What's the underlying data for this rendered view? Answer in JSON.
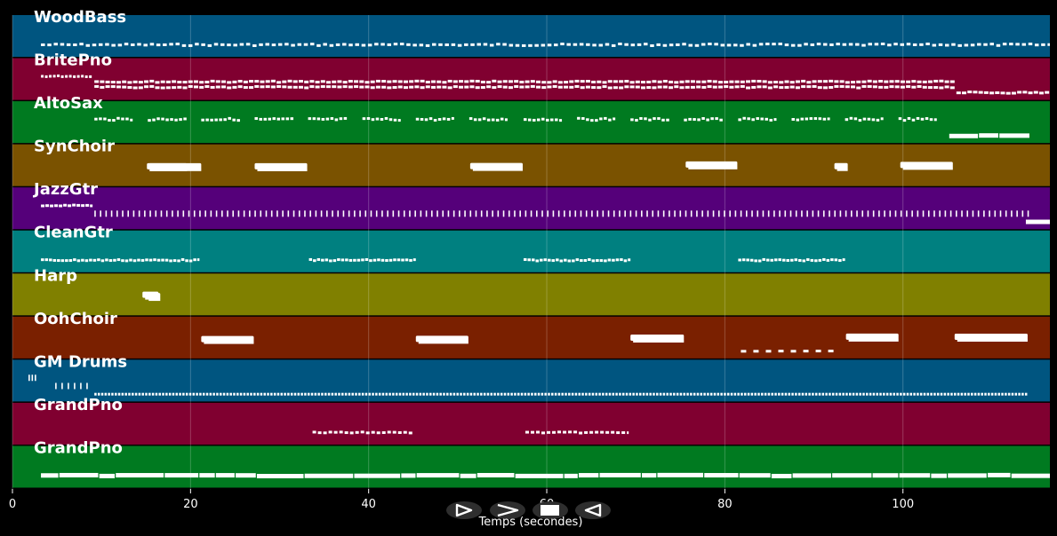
{
  "chart_data": {
    "type": "piano-roll",
    "xlabel": "Temps (secondes)",
    "xlim": [
      0,
      116.5
    ],
    "xticks": [
      0,
      20,
      40,
      60,
      80,
      100
    ],
    "grid": true,
    "tracks": [
      {
        "name": "WoodBass",
        "color": "#005580",
        "rows": [
          {
            "type": "dashes",
            "start": 3.2,
            "end": 116.5,
            "dur": 0.45,
            "gap": 0.72,
            "jitter": 1.0
          }
        ]
      },
      {
        "name": "BritePno",
        "color": "#800030",
        "rows": [
          {
            "type": "dashes",
            "start": 3.2,
            "end": 9.0,
            "dur": 0.3,
            "gap": 0.45,
            "jitter": 0.6
          },
          {
            "type": "dashes",
            "start": 9.2,
            "end": 105.8,
            "dur": 0.5,
            "gap": 0.62,
            "jitter": 0.8
          },
          {
            "type": "dashes",
            "start": 9.2,
            "end": 105.8,
            "dur": 0.5,
            "gap": 0.62,
            "jitter": 0.8
          },
          {
            "type": "dashes",
            "start": 106.0,
            "end": 116.5,
            "dur": 0.5,
            "gap": 0.62,
            "jitter": 0.8
          }
        ]
      },
      {
        "name": "AltoSax",
        "color": "#007a20",
        "rows": [
          {
            "type": "phrases",
            "phrases": [
              [
                9.2,
                13.5
              ],
              [
                15.2,
                19.6
              ],
              [
                21.2,
                25.6
              ],
              [
                27.2,
                31.6
              ],
              [
                33.2,
                37.6
              ],
              [
                39.3,
                43.6
              ],
              [
                45.3,
                49.6
              ],
              [
                51.3,
                55.6
              ],
              [
                57.4,
                61.7
              ],
              [
                63.4,
                67.7
              ],
              [
                69.4,
                73.8
              ],
              [
                75.4,
                79.8
              ],
              [
                81.5,
                85.8
              ],
              [
                87.5,
                91.8
              ],
              [
                93.5,
                97.8
              ],
              [
                99.5,
                103.8
              ]
            ],
            "dur": 0.35,
            "gap": 0.5,
            "jitter": 1.2
          },
          {
            "type": "solid",
            "start": 105.2,
            "end": 114.2,
            "jitter": 0.4
          }
        ]
      },
      {
        "name": "SynChoir",
        "color": "#7a5200",
        "rows": [
          {
            "type": "blocks",
            "blocks": [
              [
                15.1,
                19.6
              ],
              [
                15.3,
                21.2
              ],
              [
                27.2,
                33.1
              ],
              [
                51.4,
                57.3
              ],
              [
                75.6,
                81.4
              ],
              [
                92.3,
                93.8
              ],
              [
                99.7,
                105.6
              ]
            ],
            "jitter": 1.5
          }
        ]
      },
      {
        "name": "JazzGtr",
        "color": "#55007a",
        "rows": [
          {
            "type": "dashes",
            "start": 3.2,
            "end": 9.0,
            "dur": 0.4,
            "gap": 0.5,
            "jitter": 0.5
          },
          {
            "type": "bars",
            "start": 9.2,
            "end": 114.0,
            "gap": 0.62
          },
          {
            "type": "solid",
            "start": 113.8,
            "end": 116.5,
            "jitter": 0.0
          }
        ]
      },
      {
        "name": "CleanGtr",
        "color": "#008080",
        "rows": [
          {
            "type": "phrases",
            "phrases": [
              [
                3.2,
                21.0
              ],
              [
                33.3,
                45.3
              ],
              [
                57.4,
                69.4
              ],
              [
                81.5,
                93.5
              ]
            ],
            "dur": 0.35,
            "gap": 0.45,
            "jitter": 0.8
          }
        ]
      },
      {
        "name": "Harp",
        "color": "#808000",
        "rows": [
          {
            "type": "blocks",
            "blocks": [
              [
                15.0,
                16.6
              ],
              [
                14.6,
                16.4
              ]
            ],
            "jitter": 3.0
          }
        ]
      },
      {
        "name": "OohChoir",
        "color": "#7a2000",
        "rows": [
          {
            "type": "blocks",
            "blocks": [
              [
                21.2,
                27.1
              ],
              [
                45.3,
                51.2
              ],
              [
                69.4,
                75.4
              ],
              [
                93.6,
                99.5
              ],
              [
                105.8,
                114.0
              ]
            ],
            "jitter": 1.5
          },
          {
            "type": "phrases",
            "phrases": [
              [
                81.8,
                92.8
              ]
            ],
            "dur": 0.6,
            "gap": 1.4,
            "jitter": 0.2
          }
        ]
      },
      {
        "name": "GM Drums",
        "color": "#005580",
        "rows": [
          {
            "type": "bars",
            "start": 1.8,
            "end": 2.8,
            "gap": 0.35
          },
          {
            "type": "bars",
            "start": 4.8,
            "end": 9.0,
            "gap": 0.7
          },
          {
            "type": "dashes",
            "start": 9.2,
            "end": 114.0,
            "dur": 0.25,
            "gap": 0.38,
            "jitter": 0.0
          }
        ]
      },
      {
        "name": "GrandPno",
        "color": "#800030",
        "rows": [
          {
            "type": "phrases",
            "phrases": [
              [
                33.7,
                45.0
              ],
              [
                57.6,
                69.2
              ]
            ],
            "dur": 0.4,
            "gap": 0.6,
            "jitter": 0.6
          }
        ]
      },
      {
        "name": "GrandPno",
        "color": "#007a20",
        "rows": [
          {
            "type": "solid",
            "start": 3.2,
            "end": 116.5,
            "jitter": 0.6
          }
        ]
      }
    ]
  },
  "player": {
    "controls": [
      {
        "id": "play",
        "icon": "play-icon"
      },
      {
        "id": "fast-forward",
        "icon": "fast-forward-icon"
      },
      {
        "id": "stop",
        "icon": "stop-icon"
      },
      {
        "id": "rewind",
        "icon": "rewind-icon"
      }
    ],
    "color": "#2e2e2e"
  }
}
